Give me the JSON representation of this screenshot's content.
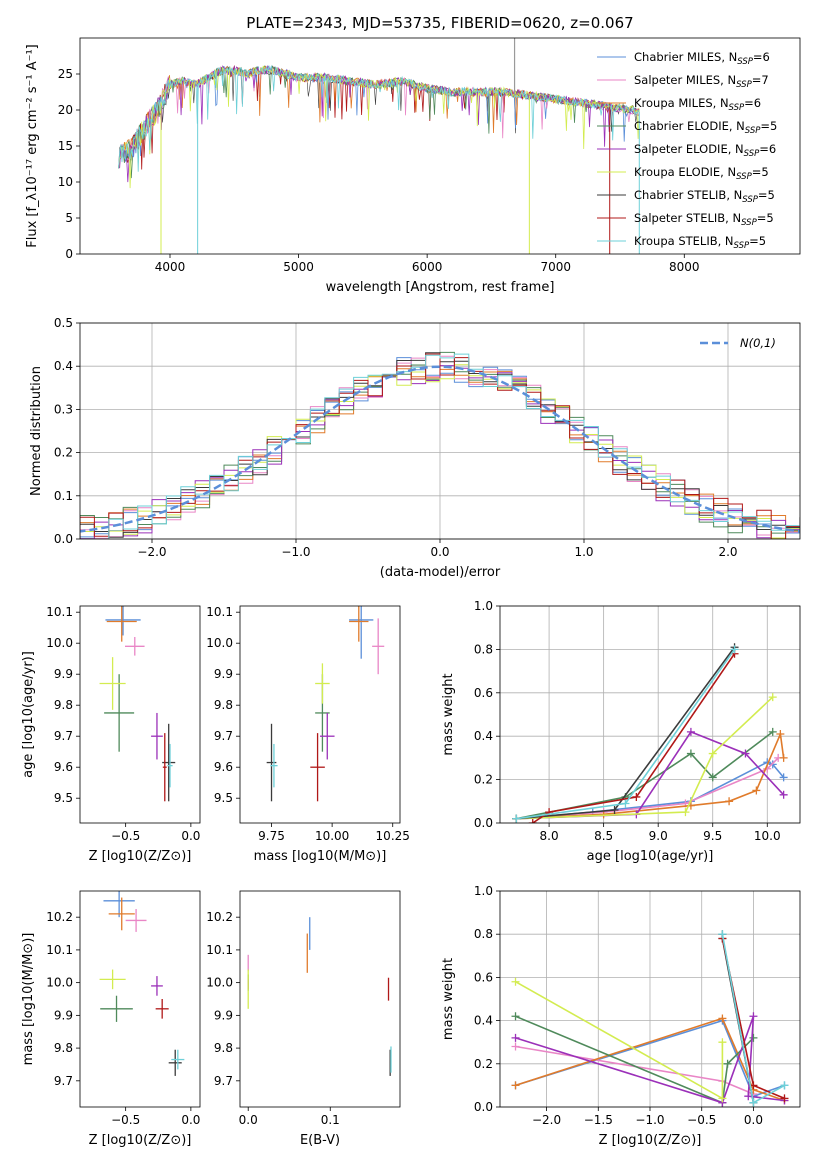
{
  "title": "PLATE=2343, MJD=53735, FIBERID=0620, z=0.067",
  "colors": [
    "#5b8fd9",
    "#e986c6",
    "#e07b2b",
    "#4f8a5b",
    "#9b30b9",
    "#d3ec50",
    "#3b3b3b",
    "#b01818",
    "#6ed0d8"
  ],
  "chart_data": [
    {
      "id": "spectrum",
      "type": "line",
      "xlabel": "wavelength [Angstrom, rest frame]",
      "ylabel": "Flux [f_λ10⁻¹⁷ erg cm⁻² s⁻¹ A⁻¹]",
      "xlim": [
        3300,
        8900
      ],
      "ylim": [
        0,
        30
      ],
      "xticks": [
        4000,
        5000,
        6000,
        7000,
        8000
      ],
      "yticks": [
        0,
        5,
        10,
        15,
        20,
        25
      ],
      "grid": false,
      "legend_position": "top-right",
      "x": [
        3600,
        3700,
        3800,
        3900,
        4000,
        4100,
        4200,
        4300,
        4400,
        4500,
        4600,
        4700,
        4800,
        4900,
        5000,
        5200,
        5400,
        5600,
        5800,
        6000,
        6200,
        6400,
        6600,
        6800,
        7000,
        7200,
        7400,
        7600,
        7800
      ],
      "y": [
        13.5,
        14.5,
        17.5,
        20.0,
        23.5,
        24.0,
        23.5,
        24.5,
        25.5,
        25.5,
        25.0,
        25.5,
        25.5,
        25.0,
        24.5,
        24.5,
        24.0,
        23.5,
        24.0,
        23.0,
        22.5,
        22.5,
        22.5,
        22.0,
        21.5,
        21.0,
        20.5,
        20.0,
        19.0
      ],
      "series": [
        {
          "name": "Chabrier MILES, N_SSP=6"
        },
        {
          "name": "Salpeter MILES, N_SSP=7"
        },
        {
          "name": "Kroupa MILES, N_SSP=6"
        },
        {
          "name": "Chabrier ELODIE, N_SSP=5"
        },
        {
          "name": "Salpeter ELODIE, N_SSP=6"
        },
        {
          "name": "Kroupa ELODIE, N_SSP=5"
        },
        {
          "name": "Chabrier STELIB, N_SSP=5"
        },
        {
          "name": "Salpeter STELIB, N_SSP=5"
        },
        {
          "name": "Kroupa STELIB, N_SSP=5"
        }
      ]
    },
    {
      "id": "residuals",
      "type": "bar",
      "xlabel": "(data-model)/error",
      "ylabel": "Normed distribution",
      "xlim": [
        -2.5,
        2.5
      ],
      "ylim": [
        0,
        0.5
      ],
      "xticks": [
        -2,
        -1,
        0,
        1,
        2
      ],
      "yticks": [
        0.0,
        0.1,
        0.2,
        0.3,
        0.4,
        0.5
      ],
      "grid": true,
      "legend_position": "top-right",
      "reference_curve": "N(0,1)",
      "bin_width": 0.1
    },
    {
      "id": "age-vs-Z",
      "type": "scatter",
      "xlabel": "Z [log10(Z/Z⊙)]",
      "ylabel": "age  [log10(age/yr)]",
      "xlim": [
        -0.85,
        0.07
      ],
      "ylim": [
        9.42,
        10.12
      ],
      "xticks": [
        -0.5,
        0.0
      ],
      "yticks": [
        9.5,
        9.6,
        9.7,
        9.8,
        9.9,
        10.0,
        10.1
      ],
      "points": [
        {
          "x": -0.52,
          "y": 10.075,
          "ex": 0.27,
          "ey": 0.1
        },
        {
          "x": -0.43,
          "y": 9.99,
          "ex": 0.15,
          "ey": 0.06
        },
        {
          "x": -0.53,
          "y": 10.07,
          "ex": 0.23,
          "ey": 0.13
        },
        {
          "x": -0.55,
          "y": 9.775,
          "ex": 0.23,
          "ey": 0.25
        },
        {
          "x": -0.26,
          "y": 9.7,
          "ex": 0.09,
          "ey": 0.15
        },
        {
          "x": -0.6,
          "y": 9.87,
          "ex": 0.2,
          "ey": 0.17
        },
        {
          "x": -0.17,
          "y": 9.615,
          "ex": 0.1,
          "ey": 0.25
        },
        {
          "x": -0.2,
          "y": 9.6,
          "ex": 0.03,
          "ey": 0.22
        },
        {
          "x": -0.16,
          "y": 9.605,
          "ex": 0.04,
          "ey": 0.14
        }
      ]
    },
    {
      "id": "age-vs-mass",
      "type": "scatter",
      "xlabel": "mass [log10(M/M⊙)]",
      "ylabel": "",
      "xlim": [
        9.62,
        10.28
      ],
      "ylim": [
        9.42,
        10.12
      ],
      "xticks": [
        9.75,
        10.0,
        10.25
      ],
      "yticks": [
        9.5,
        9.6,
        9.7,
        9.8,
        9.9,
        10.0,
        10.1
      ],
      "points": [
        {
          "x": 10.12,
          "y": 10.075,
          "ex": 0.1,
          "ey": 0.25
        },
        {
          "x": 10.19,
          "y": 9.99,
          "ex": 0.05,
          "ey": 0.18
        },
        {
          "x": 10.11,
          "y": 10.07,
          "ex": 0.08,
          "ey": 0.13
        },
        {
          "x": 9.96,
          "y": 9.775,
          "ex": 0.06,
          "ey": 0.25
        },
        {
          "x": 9.98,
          "y": 9.7,
          "ex": 0.06,
          "ey": 0.15
        },
        {
          "x": 9.96,
          "y": 9.87,
          "ex": 0.06,
          "ey": 0.13
        },
        {
          "x": 9.75,
          "y": 9.615,
          "ex": 0.04,
          "ey": 0.25
        },
        {
          "x": 9.94,
          "y": 9.6,
          "ex": 0.06,
          "ey": 0.22
        },
        {
          "x": 9.76,
          "y": 9.605,
          "ex": 0.03,
          "ey": 0.14
        }
      ]
    },
    {
      "id": "weight-vs-age",
      "type": "line",
      "xlabel": "age  [log10(age/yr)]",
      "ylabel": "mass weight",
      "xlim": [
        7.55,
        10.3
      ],
      "ylim": [
        0,
        1.0
      ],
      "xticks": [
        8.0,
        8.5,
        9.0,
        9.5,
        10.0
      ],
      "yticks": [
        0.0,
        0.2,
        0.4,
        0.6,
        0.8,
        1.0
      ],
      "grid": true,
      "series": [
        {
          "x": [
            7.7,
            8.4,
            9.3,
            10.0,
            10.05,
            10.15
          ],
          "y": [
            0.02,
            0.05,
            0.1,
            0.28,
            0.27,
            0.21
          ]
        },
        {
          "x": [
            7.7,
            8.5,
            9.25,
            10.0,
            10.1
          ],
          "y": [
            0.02,
            0.05,
            0.09,
            0.25,
            0.3
          ]
        },
        {
          "x": [
            7.7,
            8.5,
            9.3,
            9.65,
            9.9,
            10.12,
            10.15
          ],
          "y": [
            0.02,
            0.04,
            0.08,
            0.1,
            0.15,
            0.41,
            0.3
          ]
        },
        {
          "x": [
            7.7,
            8.7,
            9.3,
            9.5,
            10.05
          ],
          "y": [
            0.02,
            0.12,
            0.32,
            0.21,
            0.42
          ]
        },
        {
          "x": [
            7.7,
            8.8,
            9.3,
            9.8,
            10.15
          ],
          "y": [
            0.02,
            0.04,
            0.42,
            0.32,
            0.13
          ]
        },
        {
          "x": [
            7.7,
            9.25,
            9.5,
            10.05
          ],
          "y": [
            0.02,
            0.05,
            0.32,
            0.58
          ]
        },
        {
          "x": [
            7.7,
            8.6,
            9.7
          ],
          "y": [
            0.02,
            0.06,
            0.81
          ]
        },
        {
          "x": [
            7.85,
            8.0,
            8.8,
            9.7
          ],
          "y": [
            0.0,
            0.05,
            0.12,
            0.78
          ]
        },
        {
          "x": [
            7.7,
            8.7,
            9.7
          ],
          "y": [
            0.02,
            0.09,
            0.8
          ]
        }
      ]
    },
    {
      "id": "mass-vs-Z",
      "type": "scatter",
      "xlabel": "Z [log10(Z/Z⊙)]",
      "ylabel": "mass [log10(M/M⊙)]",
      "xlim": [
        -0.85,
        0.07
      ],
      "ylim": [
        9.62,
        10.28
      ],
      "xticks": [
        -0.5,
        0.0
      ],
      "yticks": [
        9.7,
        9.8,
        9.9,
        10.0,
        10.1,
        10.2
      ],
      "points": [
        {
          "x": -0.55,
          "y": 10.25,
          "ex": 0.24,
          "ey": 0.1
        },
        {
          "x": -0.42,
          "y": 10.19,
          "ex": 0.16,
          "ey": 0.07
        },
        {
          "x": -0.53,
          "y": 10.21,
          "ex": 0.2,
          "ey": 0.1
        },
        {
          "x": -0.57,
          "y": 9.92,
          "ex": 0.25,
          "ey": 0.08
        },
        {
          "x": -0.26,
          "y": 9.99,
          "ex": 0.09,
          "ey": 0.06
        },
        {
          "x": -0.6,
          "y": 10.01,
          "ex": 0.2,
          "ey": 0.06
        },
        {
          "x": -0.12,
          "y": 9.755,
          "ex": 0.1,
          "ey": 0.08
        },
        {
          "x": -0.22,
          "y": 9.92,
          "ex": 0.1,
          "ey": 0.06
        },
        {
          "x": -0.1,
          "y": 9.765,
          "ex": 0.1,
          "ey": 0.06
        }
      ]
    },
    {
      "id": "mass-vs-EBV",
      "type": "scatter",
      "xlabel": "E(B-V)",
      "ylabel": "",
      "xlim": [
        -0.01,
        0.185
      ],
      "ylim": [
        9.62,
        10.28
      ],
      "xticks": [
        0.0,
        0.1
      ],
      "yticks": [
        9.7,
        9.8,
        9.9,
        10.0,
        10.1,
        10.2
      ],
      "points": [
        {
          "x": 0.075,
          "y": 10.15,
          "ey": 0.1
        },
        {
          "x": 0.0,
          "y": 10.06,
          "ey": 0.05
        },
        {
          "x": 0.072,
          "y": 10.09,
          "ey": 0.12
        },
        {
          "x": 0.0,
          "y": 10.0,
          "ey": 0.05
        },
        {
          "x": 0.0,
          "y": 9.995,
          "ey": 0.03
        },
        {
          "x": 0.0,
          "y": 9.98,
          "ey": 0.12
        },
        {
          "x": 0.173,
          "y": 9.755,
          "ey": 0.08
        },
        {
          "x": 0.171,
          "y": 9.98,
          "ey": 0.07
        },
        {
          "x": 0.174,
          "y": 9.765,
          "ey": 0.08
        }
      ]
    },
    {
      "id": "weight-vs-Z",
      "type": "line",
      "xlabel": "Z [log10(Z/Z⊙)]",
      "ylabel": "mass weight",
      "xlim": [
        -2.45,
        0.45
      ],
      "ylim": [
        0,
        1.0
      ],
      "xticks": [
        -2.0,
        -1.5,
        -1.0,
        -0.5,
        0.0
      ],
      "yticks": [
        0.0,
        0.2,
        0.4,
        0.6,
        0.8,
        1.0
      ],
      "grid": true,
      "series": [
        {
          "x": [
            -2.3,
            -0.3,
            0.0,
            0.3
          ],
          "y": [
            0.1,
            0.4,
            0.05,
            0.1
          ]
        },
        {
          "x": [
            -2.3,
            -0.3,
            0.0
          ],
          "y": [
            0.28,
            0.12,
            0.06
          ]
        },
        {
          "x": [
            -2.3,
            -0.3,
            0.0,
            0.3
          ],
          "y": [
            0.1,
            0.41,
            0.08,
            0.03
          ]
        },
        {
          "x": [
            -2.3,
            -0.3,
            -0.25,
            0.0
          ],
          "y": [
            0.42,
            0.02,
            0.2,
            0.32
          ]
        },
        {
          "x": [
            -2.3,
            -0.3,
            0.0,
            -0.05,
            0.3
          ],
          "y": [
            0.32,
            0.02,
            0.42,
            0.05,
            0.03
          ]
        },
        {
          "x": [
            -2.3,
            -0.3,
            -0.3
          ],
          "y": [
            0.58,
            0.04,
            0.3
          ]
        },
        {
          "x": [
            -0.3,
            -0.3,
            0.0
          ],
          "y": [
            0.8,
            0.78,
            0.02
          ]
        },
        {
          "x": [
            -0.3,
            0.0,
            0.3
          ],
          "y": [
            0.78,
            0.1,
            0.04
          ]
        },
        {
          "x": [
            -0.3,
            0.0,
            0.3
          ],
          "y": [
            0.8,
            0.02,
            0.1
          ]
        }
      ]
    }
  ]
}
